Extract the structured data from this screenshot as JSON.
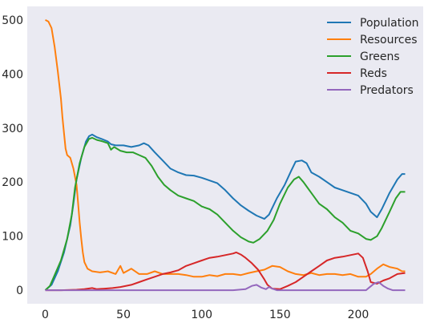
{
  "chart_data": {
    "type": "line",
    "title": "",
    "xlabel": "",
    "ylabel": "",
    "xlim": [
      -11.5,
      241.5
    ],
    "ylim": [
      -25,
      525
    ],
    "xticks": [
      0,
      50,
      100,
      150,
      200
    ],
    "yticks": [
      0,
      100,
      200,
      300,
      400,
      500
    ],
    "grid": false,
    "background": "#EAEAF2",
    "legend_position": "top-right",
    "series": [
      {
        "name": "Population",
        "color": "#1f77b4",
        "points": [
          [
            0,
            0
          ],
          [
            4,
            10
          ],
          [
            8,
            35
          ],
          [
            12,
            70
          ],
          [
            16,
            120
          ],
          [
            18,
            160
          ],
          [
            20,
            205
          ],
          [
            23,
            245
          ],
          [
            26,
            275
          ],
          [
            28,
            285
          ],
          [
            30,
            288
          ],
          [
            33,
            283
          ],
          [
            36,
            280
          ],
          [
            40,
            275
          ],
          [
            42,
            270
          ],
          [
            45,
            268
          ],
          [
            50,
            268
          ],
          [
            55,
            265
          ],
          [
            60,
            268
          ],
          [
            63,
            272
          ],
          [
            66,
            268
          ],
          [
            70,
            255
          ],
          [
            75,
            240
          ],
          [
            80,
            225
          ],
          [
            85,
            218
          ],
          [
            90,
            213
          ],
          [
            95,
            212
          ],
          [
            100,
            208
          ],
          [
            105,
            203
          ],
          [
            110,
            198
          ],
          [
            115,
            185
          ],
          [
            120,
            170
          ],
          [
            125,
            157
          ],
          [
            130,
            147
          ],
          [
            135,
            138
          ],
          [
            140,
            132
          ],
          [
            143,
            140
          ],
          [
            148,
            170
          ],
          [
            153,
            195
          ],
          [
            157,
            220
          ],
          [
            160,
            238
          ],
          [
            164,
            240
          ],
          [
            167,
            235
          ],
          [
            170,
            218
          ],
          [
            175,
            210
          ],
          [
            180,
            200
          ],
          [
            185,
            190
          ],
          [
            190,
            185
          ],
          [
            195,
            180
          ],
          [
            200,
            175
          ],
          [
            205,
            160
          ],
          [
            208,
            145
          ],
          [
            212,
            135
          ],
          [
            215,
            150
          ],
          [
            220,
            180
          ],
          [
            225,
            205
          ],
          [
            228,
            215
          ],
          [
            230,
            215
          ]
        ]
      },
      {
        "name": "Resources",
        "color": "#ff7f0e",
        "points": [
          [
            0,
            500
          ],
          [
            2,
            497
          ],
          [
            4,
            485
          ],
          [
            6,
            450
          ],
          [
            8,
            405
          ],
          [
            10,
            355
          ],
          [
            11,
            320
          ],
          [
            12,
            290
          ],
          [
            13,
            262
          ],
          [
            14,
            250
          ],
          [
            16,
            245
          ],
          [
            18,
            225
          ],
          [
            20,
            195
          ],
          [
            21,
            160
          ],
          [
            22,
            125
          ],
          [
            23,
            95
          ],
          [
            24,
            70
          ],
          [
            25,
            52
          ],
          [
            27,
            40
          ],
          [
            30,
            35
          ],
          [
            35,
            33
          ],
          [
            40,
            35
          ],
          [
            45,
            30
          ],
          [
            48,
            45
          ],
          [
            50,
            32
          ],
          [
            55,
            40
          ],
          [
            60,
            30
          ],
          [
            65,
            30
          ],
          [
            70,
            35
          ],
          [
            75,
            30
          ],
          [
            80,
            30
          ],
          [
            85,
            30
          ],
          [
            90,
            28
          ],
          [
            95,
            25
          ],
          [
            100,
            25
          ],
          [
            105,
            28
          ],
          [
            110,
            26
          ],
          [
            115,
            30
          ],
          [
            120,
            30
          ],
          [
            125,
            28
          ],
          [
            130,
            32
          ],
          [
            135,
            35
          ],
          [
            140,
            38
          ],
          [
            145,
            45
          ],
          [
            150,
            43
          ],
          [
            155,
            35
          ],
          [
            160,
            30
          ],
          [
            165,
            28
          ],
          [
            170,
            32
          ],
          [
            175,
            28
          ],
          [
            180,
            30
          ],
          [
            185,
            30
          ],
          [
            190,
            28
          ],
          [
            195,
            30
          ],
          [
            200,
            25
          ],
          [
            205,
            25
          ],
          [
            208,
            30
          ],
          [
            212,
            40
          ],
          [
            216,
            48
          ],
          [
            220,
            43
          ],
          [
            225,
            40
          ],
          [
            228,
            35
          ],
          [
            230,
            35
          ]
        ]
      },
      {
        "name": "Greens",
        "color": "#2ca02c",
        "points": [
          [
            0,
            0
          ],
          [
            3,
            8
          ],
          [
            6,
            28
          ],
          [
            10,
            55
          ],
          [
            14,
            95
          ],
          [
            17,
            140
          ],
          [
            19,
            190
          ],
          [
            22,
            235
          ],
          [
            25,
            265
          ],
          [
            28,
            280
          ],
          [
            30,
            282
          ],
          [
            33,
            278
          ],
          [
            36,
            276
          ],
          [
            40,
            272
          ],
          [
            42,
            260
          ],
          [
            44,
            265
          ],
          [
            48,
            258
          ],
          [
            52,
            255
          ],
          [
            56,
            255
          ],
          [
            60,
            250
          ],
          [
            64,
            245
          ],
          [
            68,
            230
          ],
          [
            72,
            210
          ],
          [
            76,
            195
          ],
          [
            80,
            185
          ],
          [
            85,
            175
          ],
          [
            90,
            170
          ],
          [
            95,
            165
          ],
          [
            100,
            155
          ],
          [
            105,
            150
          ],
          [
            110,
            140
          ],
          [
            115,
            125
          ],
          [
            120,
            110
          ],
          [
            125,
            98
          ],
          [
            130,
            90
          ],
          [
            133,
            88
          ],
          [
            137,
            95
          ],
          [
            142,
            110
          ],
          [
            146,
            130
          ],
          [
            150,
            160
          ],
          [
            155,
            190
          ],
          [
            159,
            205
          ],
          [
            162,
            210
          ],
          [
            165,
            200
          ],
          [
            170,
            180
          ],
          [
            175,
            160
          ],
          [
            180,
            150
          ],
          [
            185,
            135
          ],
          [
            190,
            125
          ],
          [
            195,
            110
          ],
          [
            200,
            105
          ],
          [
            205,
            95
          ],
          [
            208,
            93
          ],
          [
            212,
            100
          ],
          [
            215,
            115
          ],
          [
            220,
            145
          ],
          [
            224,
            170
          ],
          [
            227,
            182
          ],
          [
            230,
            182
          ]
        ]
      },
      {
        "name": "Reds",
        "color": "#d62728",
        "points": [
          [
            0,
            0
          ],
          [
            10,
            0
          ],
          [
            20,
            1
          ],
          [
            25,
            2
          ],
          [
            30,
            4
          ],
          [
            33,
            2
          ],
          [
            38,
            3
          ],
          [
            43,
            4
          ],
          [
            48,
            6
          ],
          [
            55,
            10
          ],
          [
            60,
            15
          ],
          [
            65,
            20
          ],
          [
            70,
            25
          ],
          [
            75,
            30
          ],
          [
            80,
            33
          ],
          [
            85,
            37
          ],
          [
            90,
            45
          ],
          [
            95,
            50
          ],
          [
            100,
            55
          ],
          [
            105,
            60
          ],
          [
            110,
            62
          ],
          [
            115,
            65
          ],
          [
            120,
            68
          ],
          [
            122,
            70
          ],
          [
            125,
            66
          ],
          [
            128,
            60
          ],
          [
            132,
            50
          ],
          [
            136,
            38
          ],
          [
            140,
            20
          ],
          [
            142,
            10
          ],
          [
            145,
            3
          ],
          [
            150,
            2
          ],
          [
            155,
            8
          ],
          [
            160,
            15
          ],
          [
            165,
            25
          ],
          [
            170,
            35
          ],
          [
            175,
            45
          ],
          [
            180,
            55
          ],
          [
            185,
            60
          ],
          [
            190,
            62
          ],
          [
            195,
            65
          ],
          [
            200,
            68
          ],
          [
            203,
            60
          ],
          [
            206,
            35
          ],
          [
            208,
            15
          ],
          [
            212,
            12
          ],
          [
            216,
            18
          ],
          [
            220,
            22
          ],
          [
            225,
            30
          ],
          [
            230,
            32
          ]
        ]
      },
      {
        "name": "Predators",
        "color": "#9467bd",
        "points": [
          [
            0,
            0
          ],
          [
            20,
            0
          ],
          [
            40,
            0
          ],
          [
            60,
            0
          ],
          [
            80,
            0
          ],
          [
            100,
            0
          ],
          [
            120,
            0
          ],
          [
            128,
            2
          ],
          [
            132,
            8
          ],
          [
            135,
            10
          ],
          [
            138,
            5
          ],
          [
            141,
            2
          ],
          [
            143,
            6
          ],
          [
            145,
            3
          ],
          [
            148,
            0
          ],
          [
            160,
            0
          ],
          [
            180,
            0
          ],
          [
            200,
            0
          ],
          [
            205,
            0
          ],
          [
            207,
            5
          ],
          [
            210,
            12
          ],
          [
            213,
            15
          ],
          [
            216,
            8
          ],
          [
            219,
            3
          ],
          [
            222,
            0
          ],
          [
            230,
            0
          ]
        ]
      }
    ]
  }
}
